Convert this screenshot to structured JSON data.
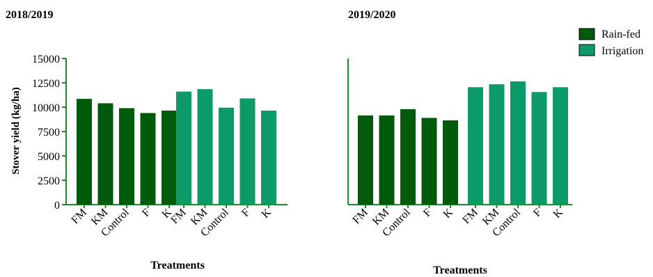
{
  "chart_data": [
    {
      "type": "bar",
      "title": "2018/2019",
      "xlabel": "Treatments",
      "ylabel": "Stover yield (kg/ha)",
      "ylim": [
        0,
        15000
      ],
      "yticks": [
        "0",
        "2500",
        "5000",
        "7500",
        "10000",
        "12500",
        "15000"
      ],
      "grid": false,
      "categories": [
        "FM",
        "KM",
        "Control",
        "F",
        "K"
      ],
      "series": [
        {
          "name": "Rain-fed",
          "color": "#005a0c",
          "values": [
            10850,
            10400,
            9900,
            9400,
            9650
          ]
        },
        {
          "name": "Irrigation",
          "color": "#0c9a66",
          "values": [
            11600,
            11850,
            9950,
            10900,
            9650
          ]
        }
      ]
    },
    {
      "type": "bar",
      "title": "2019/2020",
      "xlabel": "Treatments",
      "ylabel": "",
      "ylim": [
        0,
        15000
      ],
      "grid": false,
      "categories": [
        "FM",
        "KM",
        "Control",
        "F",
        "K"
      ],
      "series": [
        {
          "name": "Rain-fed",
          "color": "#005a0c",
          "values": [
            9150,
            9150,
            9800,
            8900,
            8650
          ]
        },
        {
          "name": "Irrigation",
          "color": "#0c9a66",
          "values": [
            12050,
            12350,
            12650,
            11550,
            12050
          ]
        }
      ]
    }
  ],
  "legend": {
    "position": "top-right",
    "items": [
      {
        "label": "Rain-fed",
        "color": "#005a0c"
      },
      {
        "label": "Irrigation",
        "color": "#0c9a66"
      }
    ]
  }
}
